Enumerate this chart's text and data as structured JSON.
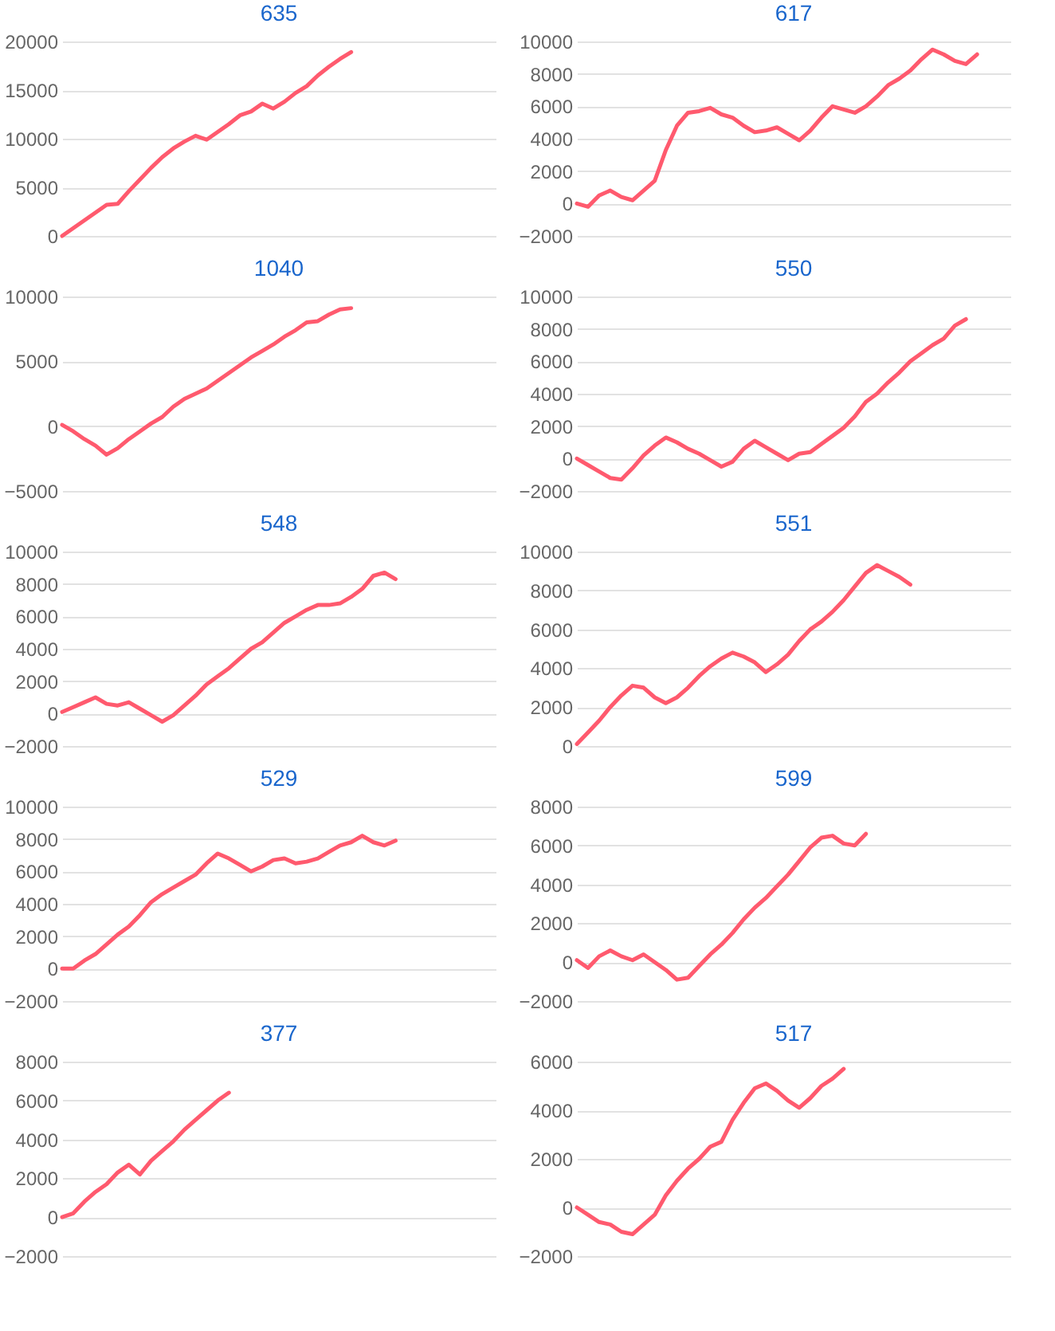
{
  "chart_data": [
    {
      "type": "line",
      "title": "635",
      "categories": [
        null,
        null,
        null,
        null,
        null,
        null,
        null,
        null,
        null,
        null,
        null,
        null,
        null,
        null,
        null,
        null,
        null,
        null,
        null,
        null,
        null,
        null,
        null,
        null,
        null,
        null,
        null,
        null,
        null,
        null,
        null,
        null,
        null,
        null,
        null,
        null,
        null,
        null,
        null,
        null
      ],
      "series": [
        {
          "color": "#ff5a6e",
          "values": [
            0,
            800,
            1600,
            2400,
            3200,
            3300,
            4600,
            5800,
            7000,
            8100,
            9000,
            9700,
            10300,
            9900,
            10700,
            11500,
            12400,
            12800,
            13600,
            13100,
            13800,
            14700,
            15400,
            16500,
            17400,
            18200,
            18900,
            null,
            null,
            null,
            null,
            null,
            null,
            null,
            null,
            null,
            null,
            null,
            null,
            null
          ]
        }
      ],
      "ylim": [
        0,
        20000
      ],
      "yticks": [
        0,
        5000,
        10000,
        15000,
        20000
      ],
      "grid": "y",
      "tick_labels": "y",
      "line_style": "solid"
    },
    {
      "type": "line",
      "title": "617",
      "categories": [
        null,
        null,
        null,
        null,
        null,
        null,
        null,
        null,
        null,
        null,
        null,
        null,
        null,
        null,
        null,
        null,
        null,
        null,
        null,
        null,
        null,
        null,
        null,
        null,
        null,
        null,
        null,
        null,
        null,
        null,
        null,
        null,
        null,
        null,
        null,
        null,
        null,
        null,
        null,
        null
      ],
      "series": [
        {
          "color": "#ff5a6e",
          "values": [
            0,
            -200,
            500,
            800,
            400,
            200,
            800,
            1400,
            3300,
            4800,
            5600,
            5700,
            5900,
            5500,
            5300,
            4800,
            4400,
            4500,
            4700,
            4300,
            3900,
            4500,
            5300,
            6000,
            5800,
            5600,
            6000,
            6600,
            7300,
            7700,
            8200,
            8900,
            9500,
            9200,
            8800,
            8600,
            9200,
            null,
            null,
            null
          ]
        }
      ],
      "ylim": [
        -2000,
        10000
      ],
      "yticks": [
        -2000,
        0,
        2000,
        4000,
        6000,
        8000,
        10000
      ],
      "grid": "y",
      "tick_labels": "y",
      "line_style": "solid"
    },
    {
      "type": "line",
      "title": "1040",
      "categories": [
        null,
        null,
        null,
        null,
        null,
        null,
        null,
        null,
        null,
        null,
        null,
        null,
        null,
        null,
        null,
        null,
        null,
        null,
        null,
        null,
        null,
        null,
        null,
        null,
        null,
        null,
        null,
        null,
        null,
        null,
        null,
        null,
        null,
        null,
        null,
        null,
        null,
        null,
        null,
        null
      ],
      "series": [
        {
          "color": "#ff5a6e",
          "values": [
            100,
            -400,
            -1000,
            -1500,
            -2200,
            -1700,
            -1000,
            -400,
            200,
            700,
            1500,
            2100,
            2500,
            2900,
            3500,
            4100,
            4700,
            5300,
            5800,
            6300,
            6900,
            7400,
            8000,
            8100,
            8600,
            9000,
            9100,
            null,
            null,
            null,
            null,
            null,
            null,
            null,
            null,
            null,
            null,
            null,
            null,
            null
          ]
        }
      ],
      "ylim": [
        -5000,
        10000
      ],
      "yticks": [
        -5000,
        0,
        5000,
        10000
      ],
      "grid": "y",
      "tick_labels": "y",
      "line_style": "solid"
    },
    {
      "type": "line",
      "title": "550",
      "categories": [
        null,
        null,
        null,
        null,
        null,
        null,
        null,
        null,
        null,
        null,
        null,
        null,
        null,
        null,
        null,
        null,
        null,
        null,
        null,
        null,
        null,
        null,
        null,
        null,
        null,
        null,
        null,
        null,
        null,
        null,
        null,
        null,
        null,
        null,
        null,
        null,
        null,
        null,
        null,
        null
      ],
      "series": [
        {
          "color": "#ff5a6e",
          "values": [
            0,
            -400,
            -800,
            -1200,
            -1300,
            -600,
            200,
            800,
            1300,
            1000,
            600,
            300,
            -100,
            -500,
            -200,
            600,
            1100,
            700,
            300,
            -100,
            300,
            400,
            900,
            1400,
            1900,
            2600,
            3500,
            4000,
            4700,
            5300,
            6000,
            6500,
            7000,
            7400,
            8200,
            8600,
            null,
            null,
            null,
            null
          ]
        }
      ],
      "ylim": [
        -2000,
        10000
      ],
      "yticks": [
        -2000,
        0,
        2000,
        4000,
        6000,
        8000,
        10000
      ],
      "grid": "y",
      "tick_labels": "y",
      "line_style": "solid"
    },
    {
      "type": "line",
      "title": "548",
      "categories": [
        null,
        null,
        null,
        null,
        null,
        null,
        null,
        null,
        null,
        null,
        null,
        null,
        null,
        null,
        null,
        null,
        null,
        null,
        null,
        null,
        null,
        null,
        null,
        null,
        null,
        null,
        null,
        null,
        null,
        null,
        null,
        null,
        null,
        null,
        null,
        null,
        null,
        null,
        null,
        null
      ],
      "series": [
        {
          "color": "#ff5a6e",
          "values": [
            100,
            400,
            700,
            1000,
            600,
            500,
            700,
            300,
            -100,
            -500,
            -100,
            500,
            1100,
            1800,
            2300,
            2800,
            3400,
            4000,
            4400,
            5000,
            5600,
            6000,
            6400,
            6700,
            6700,
            6800,
            7200,
            7700,
            8500,
            8700,
            8300,
            null,
            null,
            null,
            null,
            null,
            null,
            null,
            null,
            null
          ]
        }
      ],
      "ylim": [
        -2000,
        10000
      ],
      "yticks": [
        -2000,
        0,
        2000,
        4000,
        6000,
        8000,
        10000
      ],
      "grid": "y",
      "tick_labels": "y",
      "line_style": "solid"
    },
    {
      "type": "line",
      "title": "551",
      "categories": [
        null,
        null,
        null,
        null,
        null,
        null,
        null,
        null,
        null,
        null,
        null,
        null,
        null,
        null,
        null,
        null,
        null,
        null,
        null,
        null,
        null,
        null,
        null,
        null,
        null,
        null,
        null,
        null,
        null,
        null,
        null,
        null,
        null,
        null,
        null,
        null,
        null,
        null,
        null,
        null
      ],
      "series": [
        {
          "color": "#ff5a6e",
          "values": [
            100,
            700,
            1300,
            2000,
            2600,
            3100,
            3000,
            2500,
            2200,
            2500,
            3000,
            3600,
            4100,
            4500,
            4800,
            4600,
            4300,
            3800,
            4200,
            4700,
            5400,
            6000,
            6400,
            6900,
            7500,
            8200,
            8900,
            9300,
            9000,
            8700,
            8300,
            null,
            null,
            null,
            null,
            null,
            null,
            null,
            null,
            null
          ]
        }
      ],
      "ylim": [
        0,
        10000
      ],
      "yticks": [
        0,
        2000,
        4000,
        6000,
        8000,
        10000
      ],
      "grid": "y",
      "tick_labels": "y",
      "line_style": "solid"
    },
    {
      "type": "line",
      "title": "529",
      "categories": [
        null,
        null,
        null,
        null,
        null,
        null,
        null,
        null,
        null,
        null,
        null,
        null,
        null,
        null,
        null,
        null,
        null,
        null,
        null,
        null,
        null,
        null,
        null,
        null,
        null,
        null,
        null,
        null,
        null,
        null,
        null,
        null,
        null,
        null,
        null,
        null,
        null,
        null,
        null,
        null
      ],
      "series": [
        {
          "color": "#ff5a6e",
          "values": [
            0,
            0,
            500,
            900,
            1500,
            2100,
            2600,
            3300,
            4100,
            4600,
            5000,
            5400,
            5800,
            6500,
            7100,
            6800,
            6400,
            6000,
            6300,
            6700,
            6800,
            6500,
            6600,
            6800,
            7200,
            7600,
            7800,
            8200,
            7800,
            7600,
            7900,
            null,
            null,
            null,
            null,
            null,
            null,
            null,
            null,
            null
          ]
        }
      ],
      "ylim": [
        -2000,
        10000
      ],
      "yticks": [
        -2000,
        0,
        2000,
        4000,
        6000,
        8000,
        10000
      ],
      "grid": "y",
      "tick_labels": "y",
      "line_style": "solid"
    },
    {
      "type": "line",
      "title": "599",
      "categories": [
        null,
        null,
        null,
        null,
        null,
        null,
        null,
        null,
        null,
        null,
        null,
        null,
        null,
        null,
        null,
        null,
        null,
        null,
        null,
        null,
        null,
        null,
        null,
        null,
        null,
        null,
        null,
        null,
        null,
        null,
        null,
        null,
        null,
        null,
        null,
        null,
        null,
        null,
        null,
        null
      ],
      "series": [
        {
          "color": "#ff5a6e",
          "values": [
            100,
            -300,
            300,
            600,
            300,
            100,
            400,
            0,
            -400,
            -900,
            -800,
            -200,
            400,
            900,
            1500,
            2200,
            2800,
            3300,
            3900,
            4500,
            5200,
            5900,
            6400,
            6500,
            6100,
            6000,
            6600,
            null,
            null,
            null,
            null,
            null,
            null,
            null,
            null,
            null,
            null,
            null,
            null,
            null
          ]
        }
      ],
      "ylim": [
        -2000,
        8000
      ],
      "yticks": [
        -2000,
        0,
        2000,
        4000,
        6000,
        8000
      ],
      "grid": "y",
      "tick_labels": "y",
      "line_style": "solid"
    },
    {
      "type": "line",
      "title": "377",
      "categories": [
        null,
        null,
        null,
        null,
        null,
        null,
        null,
        null,
        null,
        null,
        null,
        null,
        null,
        null,
        null,
        null,
        null,
        null,
        null,
        null,
        null,
        null,
        null,
        null,
        null,
        null,
        null,
        null,
        null,
        null,
        null,
        null,
        null,
        null,
        null,
        null,
        null,
        null,
        null,
        null
      ],
      "series": [
        {
          "color": "#ff5a6e",
          "values": [
            0,
            200,
            800,
            1300,
            1700,
            2300,
            2700,
            2200,
            2900,
            3400,
            3900,
            4500,
            5000,
            5500,
            6000,
            6400,
            null,
            null,
            null,
            null,
            null,
            null,
            null,
            null,
            null,
            null,
            null,
            null,
            null,
            null,
            null,
            null,
            null,
            null,
            null,
            null,
            null,
            null,
            null,
            null
          ]
        }
      ],
      "ylim": [
        -2000,
        8000
      ],
      "yticks": [
        -2000,
        0,
        2000,
        4000,
        6000,
        8000
      ],
      "grid": "y",
      "tick_labels": "y",
      "line_style": "solid"
    },
    {
      "type": "line",
      "title": "517",
      "categories": [
        null,
        null,
        null,
        null,
        null,
        null,
        null,
        null,
        null,
        null,
        null,
        null,
        null,
        null,
        null,
        null,
        null,
        null,
        null,
        null,
        null,
        null,
        null,
        null,
        null,
        null,
        null,
        null,
        null,
        null,
        null,
        null,
        null,
        null,
        null,
        null,
        null,
        null,
        null,
        null
      ],
      "series": [
        {
          "color": "#ff5a6e",
          "values": [
            0,
            -300,
            -600,
            -700,
            -1000,
            -1100,
            -700,
            -300,
            500,
            1100,
            1600,
            2000,
            2500,
            2700,
            3600,
            4300,
            4900,
            5100,
            4800,
            4400,
            4100,
            4500,
            5000,
            5300,
            5700,
            null,
            null,
            null,
            null,
            null,
            null,
            null,
            null,
            null,
            null,
            null,
            null,
            null,
            null,
            null
          ]
        }
      ],
      "ylim": [
        -2000,
        6000
      ],
      "yticks": [
        -2000,
        0,
        2000,
        4000,
        6000
      ],
      "grid": "y",
      "tick_labels": "y",
      "line_style": "solid"
    }
  ]
}
